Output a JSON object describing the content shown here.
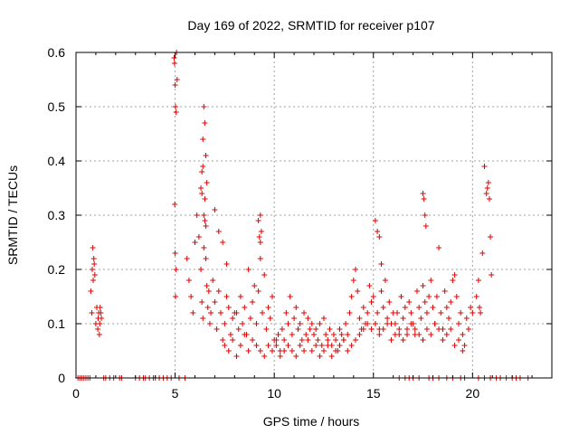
{
  "chart_data": {
    "type": "scatter",
    "title": "Day 169 of 2022, SRMTID for receiver p107",
    "xlabel": "GPS time / hours",
    "ylabel": "SRMTID / TECUs",
    "xlim": [
      0,
      24
    ],
    "ylim": [
      0,
      0.6
    ],
    "x_ticks": [
      0,
      5,
      10,
      15,
      20
    ],
    "y_ticks": [
      0,
      0.1,
      0.2,
      0.3,
      0.4,
      0.5,
      0.6
    ],
    "x_tick_labels": [
      "0",
      "5",
      "10",
      "15",
      "20"
    ],
    "y_tick_labels": [
      "0",
      "0.1",
      "0.2",
      "0.3",
      "0.4",
      "0.5",
      "0.6"
    ],
    "grid": true,
    "marker": "+",
    "color": "#e00000",
    "series": [
      {
        "name": "SRMTID",
        "x": [
          0.1,
          0.2,
          0.3,
          0.4,
          0.5,
          0.6,
          0.7,
          1.4,
          1.5,
          1.7,
          1.9,
          2.2,
          2.3,
          3.0,
          3.2,
          3.4,
          3.5,
          3.7,
          3.9,
          4.0,
          4.2,
          4.4,
          4.6,
          4.8,
          5.2,
          5.5,
          16.3,
          16.6,
          16.8,
          17.0,
          17.3,
          17.8,
          18.0,
          18.3,
          18.7,
          19.0,
          19.4,
          19.6,
          20.3,
          20.6,
          20.9,
          21.2,
          21.4,
          21.7,
          22.0,
          22.2,
          22.4,
          22.8,
          0.75,
          0.8,
          0.82,
          0.85,
          0.87,
          0.9,
          0.92,
          0.95,
          1.0,
          1.05,
          1.1,
          1.12,
          1.15,
          1.18,
          1.2,
          1.22,
          1.25,
          1.28,
          4.95,
          4.97,
          5.0,
          5.02,
          5.05,
          5.07,
          5.1,
          5.0,
          5.02,
          4.98,
          5.05,
          5.6,
          5.7,
          5.8,
          5.9,
          6.0,
          6.1,
          6.2,
          6.3,
          6.35,
          6.4,
          6.45,
          6.5,
          6.55,
          6.6,
          6.65,
          6.7,
          6.75,
          6.8,
          6.9,
          7.0,
          7.1,
          7.2,
          7.3,
          7.4,
          7.5,
          7.6,
          7.7,
          7.8,
          7.9,
          8.0,
          6.3,
          6.35,
          6.4,
          6.45,
          6.5,
          6.55,
          6.6,
          6.4,
          6.5,
          6.45,
          6.55,
          6.35,
          7.0,
          7.2,
          7.4,
          7.6,
          8.1,
          8.2,
          8.3,
          8.4,
          8.5,
          8.6,
          8.7,
          8.8,
          8.9,
          9.0,
          9.1,
          9.2,
          9.3,
          9.4,
          9.5,
          9.6,
          9.7,
          9.8,
          9.9,
          10.0,
          9.2,
          9.3,
          9.35,
          9.25,
          9.3,
          10.1,
          10.2,
          10.3,
          10.4,
          10.5,
          10.6,
          10.7,
          10.8,
          10.9,
          11.0,
          11.1,
          11.2,
          11.3,
          11.4,
          11.5,
          11.6,
          11.7,
          11.8,
          11.9,
          12.0,
          12.1,
          12.2,
          12.3,
          12.4,
          12.5,
          12.6,
          12.7,
          12.8,
          12.9,
          13.0,
          13.1,
          13.2,
          13.3,
          13.4,
          13.5,
          13.6,
          13.7,
          13.8,
          13.9,
          14.0,
          14.1,
          14.2,
          14.3,
          14.4,
          14.5,
          14.6,
          14.7,
          14.8,
          14.9,
          15.0,
          15.1,
          15.2,
          15.3,
          15.4,
          15.5,
          15.6,
          15.7,
          15.8,
          15.9,
          16.0,
          15.1,
          15.2,
          15.3,
          15.4,
          16.1,
          16.2,
          16.3,
          16.4,
          16.5,
          16.6,
          16.7,
          16.8,
          16.9,
          17.0,
          17.1,
          17.2,
          17.3,
          17.4,
          17.5,
          17.6,
          17.7,
          17.8,
          17.9,
          18.0,
          17.5,
          17.55,
          17.6,
          17.65,
          18.1,
          18.2,
          18.3,
          18.4,
          18.5,
          18.6,
          18.7,
          18.8,
          18.9,
          19.0,
          19.1,
          19.2,
          19.3,
          19.4,
          19.5,
          19.6,
          19.7,
          19.8,
          19.9,
          20.0,
          20.2,
          20.3,
          20.35,
          20.4,
          20.5,
          20.6,
          20.7,
          20.75,
          20.8,
          20.85,
          20.9,
          20.95,
          7.5,
          7.7,
          7.9,
          8.1,
          8.3,
          8.5,
          8.7,
          8.9,
          9.1,
          9.3,
          9.5,
          9.7,
          9.9,
          10.1,
          10.3,
          10.5,
          10.7,
          10.9,
          11.1,
          11.3,
          11.5,
          11.7,
          11.9,
          12.1,
          12.3,
          12.5,
          12.7,
          12.9,
          13.1,
          13.3,
          13.5,
          13.7,
          13.9,
          14.1,
          14.3,
          14.5,
          14.7,
          14.9,
          15.1,
          15.3,
          15.5,
          15.7,
          15.9,
          16.1,
          16.3,
          16.5,
          16.7,
          16.9,
          17.1,
          17.3,
          17.5,
          17.7,
          17.9,
          18.1,
          18.3,
          18.5,
          18.7,
          18.9,
          19.1,
          19.3,
          19.5
        ],
        "y": [
          0,
          0,
          0,
          0,
          0,
          0,
          0,
          0,
          0,
          0,
          0,
          0,
          0,
          0,
          0,
          0,
          0,
          0,
          0,
          0,
          0,
          0,
          0,
          0,
          0,
          0,
          0,
          0,
          0,
          0,
          0,
          0,
          0,
          0,
          0,
          0,
          0,
          0,
          0,
          0,
          0,
          0,
          0,
          0,
          0,
          0,
          0,
          0,
          0.16,
          0.12,
          0.2,
          0.24,
          0.18,
          0.22,
          0.21,
          0.19,
          0.1,
          0.13,
          0.09,
          0.11,
          0.12,
          0.08,
          0.1,
          0.13,
          0.12,
          0.11,
          0.59,
          0.58,
          0.54,
          0.5,
          0.49,
          0.6,
          0.55,
          0.23,
          0.15,
          0.32,
          0.2,
          0.22,
          0.18,
          0.15,
          0.12,
          0.25,
          0.3,
          0.26,
          0.2,
          0.14,
          0.11,
          0.24,
          0.29,
          0.22,
          0.17,
          0.13,
          0.16,
          0.1,
          0.12,
          0.18,
          0.14,
          0.09,
          0.16,
          0.12,
          0.07,
          0.1,
          0.15,
          0.13,
          0.08,
          0.11,
          0.12,
          0.35,
          0.38,
          0.44,
          0.5,
          0.47,
          0.41,
          0.36,
          0.39,
          0.33,
          0.3,
          0.28,
          0.34,
          0.31,
          0.27,
          0.25,
          0.21,
          0.12,
          0.09,
          0.15,
          0.1,
          0.13,
          0.08,
          0.2,
          0.11,
          0.14,
          0.17,
          0.1,
          0.16,
          0.25,
          0.12,
          0.19,
          0.09,
          0.13,
          0.11,
          0.15,
          0.07,
          0.29,
          0.3,
          0.27,
          0.26,
          0.22,
          0.06,
          0.08,
          0.05,
          0.09,
          0.07,
          0.12,
          0.1,
          0.15,
          0.08,
          0.11,
          0.13,
          0.09,
          0.1,
          0.07,
          0.12,
          0.08,
          0.11,
          0.09,
          0.1,
          0.08,
          0.09,
          0.07,
          0.1,
          0.06,
          0.11,
          0.08,
          0.07,
          0.09,
          0.06,
          0.08,
          0.07,
          0.05,
          0.09,
          0.08,
          0.07,
          0.1,
          0.08,
          0.12,
          0.15,
          0.18,
          0.2,
          0.16,
          0.11,
          0.09,
          0.13,
          0.1,
          0.12,
          0.17,
          0.14,
          0.15,
          0.1,
          0.12,
          0.09,
          0.16,
          0.13,
          0.18,
          0.11,
          0.14,
          0.1,
          0.12,
          0.29,
          0.27,
          0.26,
          0.21,
          0.1,
          0.12,
          0.08,
          0.15,
          0.11,
          0.13,
          0.09,
          0.14,
          0.12,
          0.1,
          0.08,
          0.16,
          0.13,
          0.11,
          0.17,
          0.14,
          0.12,
          0.15,
          0.18,
          0.13,
          0.34,
          0.33,
          0.3,
          0.28,
          0.1,
          0.15,
          0.24,
          0.12,
          0.09,
          0.16,
          0.13,
          0.11,
          0.14,
          0.18,
          0.19,
          0.15,
          0.1,
          0.12,
          0.08,
          0.06,
          0.11,
          0.09,
          0.13,
          0.12,
          0.15,
          0.18,
          0.13,
          0.12,
          0.23,
          0.39,
          0.34,
          0.35,
          0.36,
          0.33,
          0.26,
          0.19,
          0.06,
          0.05,
          0.07,
          0.04,
          0.06,
          0.08,
          0.05,
          0.07,
          0.06,
          0.05,
          0.04,
          0.06,
          0.05,
          0.07,
          0.04,
          0.05,
          0.06,
          0.05,
          0.04,
          0.06,
          0.05,
          0.07,
          0.05,
          0.06,
          0.04,
          0.05,
          0.06,
          0.04,
          0.05,
          0.06,
          0.07,
          0.05,
          0.06,
          0.07,
          0.08,
          0.09,
          0.1,
          0.09,
          0.1,
          0.08,
          0.09,
          0.1,
          0.07,
          0.08,
          0.09,
          0.07,
          0.08,
          0.1,
          0.09,
          0.08,
          0.07,
          0.09,
          0.08,
          0.1,
          0.09,
          0.07,
          0.08,
          0.09,
          0.06,
          0.07,
          0.05
        ]
      }
    ]
  }
}
